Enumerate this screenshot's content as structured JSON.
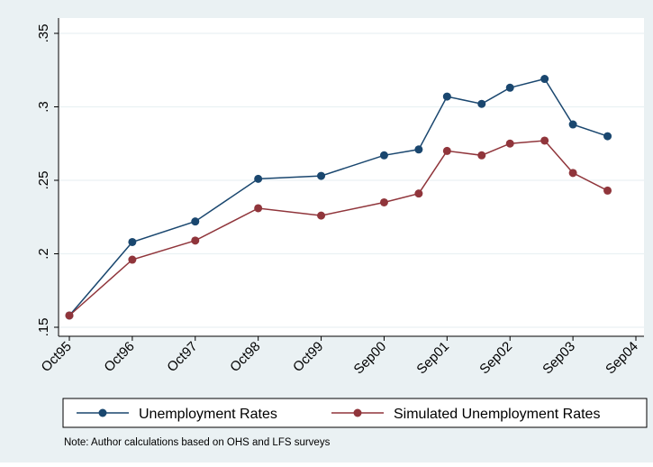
{
  "chart_data": {
    "type": "line",
    "x_tick_labels": [
      "Oct95",
      "Oct96",
      "Oct97",
      "Oct98",
      "Oct99",
      "Sep00",
      "Sep01",
      "Sep02",
      "Sep03",
      "Sep04"
    ],
    "y_tick_labels": [
      ".15",
      ".2",
      ".25",
      ".3",
      ".35"
    ],
    "y_ticks": [
      0.15,
      0.2,
      0.25,
      0.3,
      0.35
    ],
    "ylim": [
      0.15,
      0.355
    ],
    "x_points": [
      "Oct95",
      "Oct96",
      "Oct97",
      "Oct98",
      "Oct99",
      "Sep00",
      "Mar01",
      "Sep01",
      "Mar02",
      "Sep02",
      "Mar03",
      "Sep03",
      "Mar04"
    ],
    "series": [
      {
        "name": "Unemployment Rates",
        "color": "#1a476f",
        "values": [
          0.158,
          0.208,
          0.222,
          0.251,
          0.253,
          0.267,
          0.271,
          0.307,
          0.302,
          0.313,
          0.319,
          0.288,
          0.28
        ]
      },
      {
        "name": "Simulated Unemployment Rates",
        "color": "#90353b",
        "values": [
          0.158,
          0.196,
          0.209,
          0.231,
          0.226,
          0.235,
          0.241,
          0.27,
          0.267,
          0.275,
          0.277,
          0.255,
          0.243
        ]
      }
    ],
    "grid": true,
    "legend_position": "bottom",
    "note": "Note: Author calculations based on OHS and LFS surveys"
  }
}
